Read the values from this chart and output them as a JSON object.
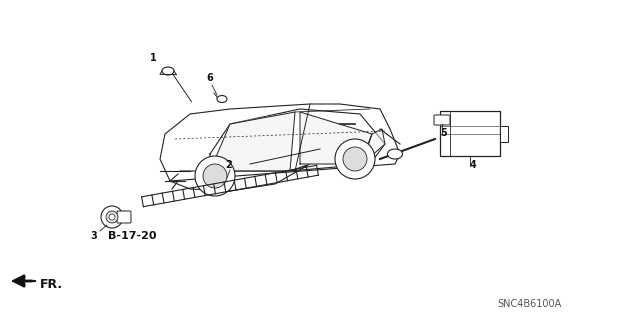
{
  "title": "",
  "background_color": "#ffffff",
  "figsize": [
    6.4,
    3.19
  ],
  "dpi": 100,
  "diagram_code": "SNC4B6100A",
  "ref_code": "B-17-20",
  "fr_label": "FR.",
  "part_numbers": [
    "1",
    "2",
    "3",
    "4",
    "5",
    "6"
  ],
  "line_color": "#222222",
  "text_color": "#111111",
  "border_color": "#cccccc"
}
